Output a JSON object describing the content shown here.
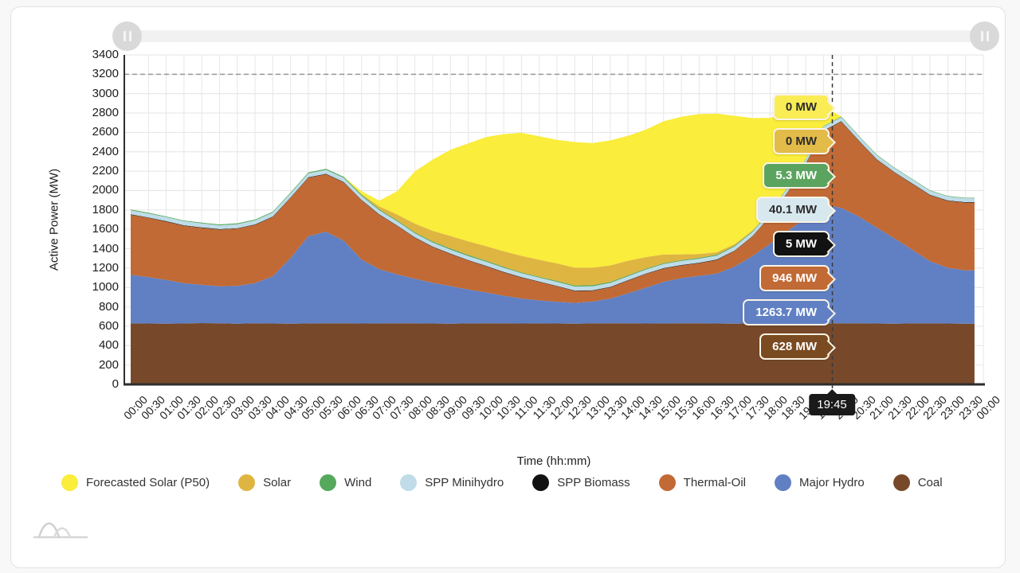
{
  "page": {
    "background": "#f8f8f8",
    "card_background": "#ffffff"
  },
  "slider": {
    "left_handle": "drag-handle",
    "right_handle": "drag-handle"
  },
  "chart_data": {
    "type": "area",
    "stacked": true,
    "xlabel": "Time (hh:mm)",
    "ylabel": "Active Power (MW)",
    "ylim": [
      0,
      3400
    ],
    "ytick_step": 200,
    "grid": true,
    "limit_line_value": 3200,
    "crosshair": {
      "label": "19:45",
      "hours": 19.75
    },
    "x_tick_labels": [
      "00:00",
      "00:30",
      "01:00",
      "01:30",
      "02:00",
      "02:30",
      "03:00",
      "03:30",
      "04:00",
      "04:30",
      "05:00",
      "05:30",
      "06:00",
      "06:30",
      "07:00",
      "07:30",
      "08:00",
      "08:30",
      "09:00",
      "09:30",
      "10:00",
      "10:30",
      "11:00",
      "11:30",
      "12:00",
      "12:30",
      "13:00",
      "13:30",
      "14:00",
      "14:30",
      "15:00",
      "15:30",
      "16:00",
      "16:30",
      "17:00",
      "17:30",
      "18:00",
      "18:30",
      "19:00",
      "19:30",
      "20:00",
      "20:30",
      "21:00",
      "21:30",
      "22:00",
      "22:30",
      "23:00",
      "23:30",
      "00:00"
    ],
    "series": [
      {
        "name": "Coal",
        "color": "#77492A",
        "values": [
          630,
          628,
          626,
          629,
          632,
          630,
          627,
          630,
          628,
          626,
          629,
          631,
          630,
          628,
          629,
          631,
          630,
          628,
          626,
          629,
          631,
          630,
          628,
          629,
          628,
          626,
          629,
          631,
          630,
          628,
          629,
          631,
          630,
          628,
          626,
          629,
          631,
          630,
          628,
          629,
          631,
          630,
          628,
          626,
          629,
          631,
          628,
          626
        ]
      },
      {
        "name": "Major Hydro",
        "color": "#6180C4",
        "values": [
          500,
          478,
          452,
          415,
          395,
          382,
          390,
          415,
          488,
          680,
          900,
          945,
          852,
          660,
          560,
          505,
          460,
          420,
          388,
          350,
          318,
          285,
          258,
          238,
          224,
          215,
          226,
          254,
          310,
          370,
          430,
          465,
          490,
          515,
          590,
          695,
          820,
          955,
          1090,
          1225,
          1190,
          1100,
          990,
          880,
          760,
          640,
          575,
          550
        ]
      },
      {
        "name": "Thermal-Oil",
        "color": "#C16A35",
        "values": [
          620,
          612,
          601,
          593,
          588,
          585,
          590,
          601,
          611,
          618,
          603,
          592,
          601,
          611,
          560,
          500,
          422,
          370,
          331,
          300,
          270,
          241,
          215,
          190,
          160,
          122,
          111,
          116,
          131,
          141,
          136,
          131,
          131,
          141,
          161,
          201,
          281,
          401,
          561,
          760,
          890,
          780,
          700,
          680,
          680,
          680,
          690,
          700
        ]
      },
      {
        "name": "SPP Biomass",
        "color": "#111111",
        "values": [
          5,
          5,
          5,
          5,
          5,
          5,
          5,
          5,
          5,
          5,
          5,
          5,
          5,
          5,
          5,
          5,
          5,
          5,
          5,
          5,
          5,
          5,
          5,
          5,
          5,
          5,
          5,
          5,
          5,
          5,
          5,
          5,
          5,
          5,
          5,
          5,
          5,
          5,
          5,
          5,
          5,
          5,
          5,
          5,
          5,
          5,
          5,
          5
        ]
      },
      {
        "name": "SPP Minihydro",
        "color": "#BFDCE8",
        "values": [
          41,
          41,
          42,
          42,
          41,
          40,
          41,
          42,
          42,
          41,
          40,
          41,
          42,
          41,
          41,
          42,
          42,
          41,
          40,
          41,
          42,
          42,
          41,
          40,
          41,
          42,
          42,
          41,
          40,
          41,
          42,
          42,
          41,
          40,
          41,
          42,
          42,
          41,
          40,
          41,
          42,
          42,
          41,
          40,
          41,
          42,
          41,
          40
        ]
      },
      {
        "name": "Wind",
        "color": "#55A85C",
        "values": [
          8,
          8,
          7,
          7,
          8,
          9,
          9,
          8,
          8,
          9,
          10,
          11,
          12,
          12,
          11,
          10,
          10,
          11,
          12,
          12,
          11,
          10,
          9,
          9,
          10,
          11,
          12,
          11,
          10,
          9,
          8,
          8,
          9,
          10,
          9,
          8,
          7,
          6,
          6,
          6,
          6,
          6,
          6,
          6,
          5,
          5,
          5,
          5
        ]
      },
      {
        "name": "Solar",
        "color": "#DFB542",
        "values": [
          0,
          0,
          0,
          0,
          0,
          0,
          0,
          0,
          0,
          0,
          0,
          0,
          0,
          5,
          30,
          60,
          90,
          110,
          130,
          140,
          150,
          160,
          170,
          175,
          180,
          185,
          180,
          170,
          150,
          120,
          90,
          60,
          40,
          25,
          15,
          8,
          0,
          0,
          0,
          0,
          0,
          0,
          0,
          0,
          0,
          0,
          0,
          0
        ]
      },
      {
        "name": "Forecasted Solar (P50)",
        "color": "#FAED3B",
        "values": [
          0,
          0,
          0,
          0,
          0,
          0,
          0,
          0,
          0,
          0,
          0,
          0,
          0,
          30,
          60,
          240,
          540,
          735,
          890,
          1010,
          1125,
          1210,
          1270,
          1275,
          1275,
          1295,
          1285,
          1290,
          1290,
          1315,
          1375,
          1420,
          1445,
          1430,
          1325,
          1160,
          965,
          750,
          500,
          205,
          0,
          0,
          0,
          0,
          0,
          0,
          0,
          0
        ]
      }
    ],
    "legend": [
      {
        "label": "Forecasted Solar (P50)",
        "color": "#FAED3B"
      },
      {
        "label": "Solar",
        "color": "#DFB542"
      },
      {
        "label": "Wind",
        "color": "#55A85C"
      },
      {
        "label": "SPP Minihydro",
        "color": "#BFDCE8"
      },
      {
        "label": "SPP Biomass",
        "color": "#111111"
      },
      {
        "label": "Thermal-Oil",
        "color": "#C16A35"
      },
      {
        "label": "Major Hydro",
        "color": "#6180C4"
      },
      {
        "label": "Coal",
        "color": "#77492A"
      }
    ],
    "callouts": [
      {
        "label": "0 MW",
        "bg": "#F9EC55",
        "text": "#2b2b2b"
      },
      {
        "label": "0 MW",
        "bg": "#E2BB49",
        "text": "#2b2b2b"
      },
      {
        "label": "5.3 MW",
        "bg": "#5BA45F",
        "text": "#ffffff"
      },
      {
        "label": "40.1 MW",
        "bg": "#D8E8EF",
        "text": "#2b2b2b"
      },
      {
        "label": "5 MW",
        "bg": "#121212",
        "text": "#ffffff"
      },
      {
        "label": "946 MW",
        "bg": "#C16A35",
        "text": "#ffffff"
      },
      {
        "label": "1263.7 MW",
        "bg": "#6180C4",
        "text": "#ffffff"
      },
      {
        "label": "628 MW",
        "bg": "#7A4A21",
        "text": "#ffffff"
      }
    ]
  }
}
